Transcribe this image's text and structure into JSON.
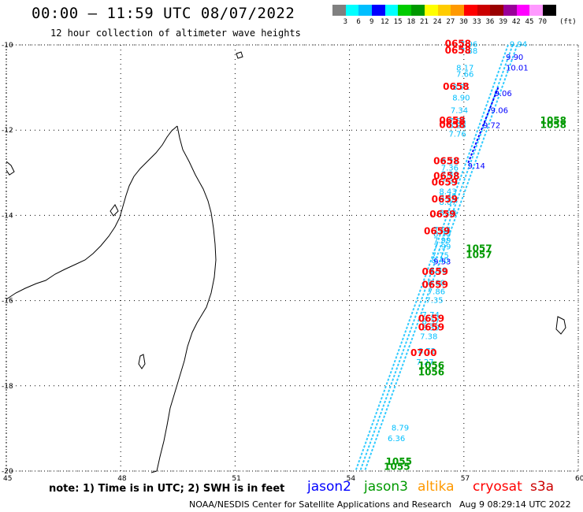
{
  "header": {
    "title": "00:00 – 11:59 UTC 08/07/2022",
    "subtitle": "12 hour collection of altimeter wave heights"
  },
  "legend": {
    "colors": [
      "#808080",
      "#00ffff",
      "#00bfff",
      "#0000ff",
      "#00ffff",
      "#00cc00",
      "#009900",
      "#ffff00",
      "#ffcc00",
      "#ff9900",
      "#ff0000",
      "#cc0000",
      "#990000",
      "#990099",
      "#ff00ff",
      "#ff99ff",
      "#000000"
    ],
    "labels": [
      "3",
      "6",
      "9",
      "12",
      "15",
      "18",
      "21",
      "24",
      "27",
      "30",
      "33",
      "36",
      "39",
      "42",
      "45",
      "70"
    ],
    "unit": "(ft)"
  },
  "map": {
    "lat_labels": [
      "-10",
      "-12",
      "-14",
      "-16",
      "-18",
      "-20"
    ],
    "lon_labels": [
      "45",
      "48",
      "51",
      "54",
      "57",
      "60"
    ],
    "swh_labels": [
      {
        "text": "7.96",
        "lon": 56.9,
        "lat": -10.05,
        "color": "#00bfff"
      },
      {
        "text": "7.88",
        "lon": 56.9,
        "lat": -10.2,
        "color": "#00bfff"
      },
      {
        "text": "8.17",
        "lon": 56.8,
        "lat": -10.6,
        "color": "#00bfff"
      },
      {
        "text": "7.66",
        "lon": 56.8,
        "lat": -10.75,
        "color": "#00bfff"
      },
      {
        "text": "8.71",
        "lon": 56.7,
        "lat": -11.05,
        "color": "#00bfff"
      },
      {
        "text": "8.90",
        "lon": 56.7,
        "lat": -11.3,
        "color": "#00bfff"
      },
      {
        "text": "7.34",
        "lon": 56.65,
        "lat": -11.6,
        "color": "#00bfff"
      },
      {
        "text": "7.55",
        "lon": 56.6,
        "lat": -11.85,
        "color": "#00bfff"
      },
      {
        "text": "8.28",
        "lon": 56.6,
        "lat": -11.95,
        "color": "#00bfff"
      },
      {
        "text": "7.76",
        "lon": 56.6,
        "lat": -12.15,
        "color": "#00bfff"
      },
      {
        "text": "8.21",
        "lon": 56.4,
        "lat": -12.8,
        "color": "#00bfff"
      },
      {
        "text": "7.36",
        "lon": 56.4,
        "lat": -12.95,
        "color": "#00bfff"
      },
      {
        "text": "7.36",
        "lon": 56.4,
        "lat": -13.1,
        "color": "#00bfff"
      },
      {
        "text": "7.32",
        "lon": 56.4,
        "lat": -13.25,
        "color": "#00bfff"
      },
      {
        "text": "8.43",
        "lon": 56.35,
        "lat": -13.5,
        "color": "#00bfff"
      },
      {
        "text": "8.40",
        "lon": 56.35,
        "lat": -13.62,
        "color": "#00bfff"
      },
      {
        "text": "8.07",
        "lon": 56.35,
        "lat": -13.75,
        "color": "#00bfff"
      },
      {
        "text": "8.03",
        "lon": 56.35,
        "lat": -14.0,
        "color": "#00bfff"
      },
      {
        "text": "7.94",
        "lon": 56.2,
        "lat": -14.4,
        "color": "#00bfff"
      },
      {
        "text": "8.70",
        "lon": 56.2,
        "lat": -14.5,
        "color": "#00bfff"
      },
      {
        "text": "7.99",
        "lon": 56.2,
        "lat": -14.65,
        "color": "#00bfff"
      },
      {
        "text": "7.99",
        "lon": 56.2,
        "lat": -14.8,
        "color": "#00bfff"
      },
      {
        "text": "7.75",
        "lon": 56.15,
        "lat": -15.0,
        "color": "#00bfff"
      },
      {
        "text": "8.40",
        "lon": 56.15,
        "lat": -15.12,
        "color": "#00bfff"
      },
      {
        "text": "8.38",
        "lon": 56.1,
        "lat": -15.35,
        "color": "#00bfff"
      },
      {
        "text": "8.00",
        "lon": 56.05,
        "lat": -15.65,
        "color": "#00bfff"
      },
      {
        "text": "7.86",
        "lon": 56.05,
        "lat": -15.85,
        "color": "#00bfff"
      },
      {
        "text": "7.35",
        "lon": 56.0,
        "lat": -16.05,
        "color": "#00bfff"
      },
      {
        "text": "7.74",
        "lon": 55.9,
        "lat": -16.4,
        "color": "#00bfff"
      },
      {
        "text": "8.37",
        "lon": 55.9,
        "lat": -16.55,
        "color": "#00bfff"
      },
      {
        "text": "6.39",
        "lon": 55.9,
        "lat": -16.7,
        "color": "#00bfff"
      },
      {
        "text": "7.38",
        "lon": 55.85,
        "lat": -16.9,
        "color": "#00bfff"
      },
      {
        "text": "8.72",
        "lon": 55.8,
        "lat": -17.25,
        "color": "#00bfff"
      },
      {
        "text": "7.27",
        "lon": 55.75,
        "lat": -17.5,
        "color": "#00bfff"
      },
      {
        "text": "8.79",
        "lon": 55.1,
        "lat": -19.05,
        "color": "#00bfff"
      },
      {
        "text": "6.36",
        "lon": 55.0,
        "lat": -19.3,
        "color": "#00bfff"
      },
      {
        "text": "9.94",
        "lon": 58.2,
        "lat": -10.05,
        "color": "#00bfff"
      },
      {
        "text": "9.90",
        "lon": 58.1,
        "lat": -10.35,
        "color": "#0000ff"
      },
      {
        "text": "10.01",
        "lon": 58.1,
        "lat": -10.6,
        "color": "#0000ff"
      },
      {
        "text": "9.06",
        "lon": 57.8,
        "lat": -11.2,
        "color": "#0000ff"
      },
      {
        "text": "9.06",
        "lon": 57.7,
        "lat": -11.6,
        "color": "#0000ff"
      },
      {
        "text": "9.72",
        "lon": 57.5,
        "lat": -11.95,
        "color": "#0000ff"
      },
      {
        "text": "9.14",
        "lon": 57.1,
        "lat": -12.9,
        "color": "#0000ff"
      },
      {
        "text": "9.53",
        "lon": 56.2,
        "lat": -15.15,
        "color": "#0000ff"
      }
    ],
    "time_labels": [
      {
        "text": "0658",
        "lon": 56.5,
        "lat": -10.05,
        "color": "#ff0000"
      },
      {
        "text": "0658",
        "lon": 56.5,
        "lat": -10.2,
        "color": "#ff0000"
      },
      {
        "text": "0658",
        "lon": 56.45,
        "lat": -11.05,
        "color": "#ff0000"
      },
      {
        "text": "0658",
        "lon": 56.35,
        "lat": -11.85,
        "color": "#ff0000"
      },
      {
        "text": "0658",
        "lon": 56.35,
        "lat": -11.95,
        "color": "#ff0000"
      },
      {
        "text": "0658",
        "lon": 56.2,
        "lat": -12.8,
        "color": "#ff0000"
      },
      {
        "text": "0658",
        "lon": 56.2,
        "lat": -13.15,
        "color": "#ff0000"
      },
      {
        "text": "0659",
        "lon": 56.15,
        "lat": -13.3,
        "color": "#ff0000"
      },
      {
        "text": "0659",
        "lon": 56.15,
        "lat": -13.7,
        "color": "#ff0000"
      },
      {
        "text": "0659",
        "lon": 56.1,
        "lat": -14.05,
        "color": "#ff0000"
      },
      {
        "text": "0659",
        "lon": 55.95,
        "lat": -14.45,
        "color": "#ff0000"
      },
      {
        "text": "0659",
        "lon": 55.9,
        "lat": -15.4,
        "color": "#ff0000"
      },
      {
        "text": "0659",
        "lon": 55.9,
        "lat": -15.7,
        "color": "#ff0000"
      },
      {
        "text": "0659",
        "lon": 55.8,
        "lat": -16.5,
        "color": "#ff0000"
      },
      {
        "text": "0659",
        "lon": 55.8,
        "lat": -16.7,
        "color": "#ff0000"
      },
      {
        "text": "0700",
        "lon": 55.6,
        "lat": -17.3,
        "color": "#ff0000"
      },
      {
        "text": "1058",
        "lon": 59.0,
        "lat": -11.85,
        "color": "#009900"
      },
      {
        "text": "1058",
        "lon": 59.0,
        "lat": -11.95,
        "color": "#009900"
      },
      {
        "text": "1057",
        "lon": 57.05,
        "lat": -14.85,
        "color": "#009900"
      },
      {
        "text": "1057",
        "lon": 57.05,
        "lat": -15.0,
        "color": "#009900"
      },
      {
        "text": "1056",
        "lon": 55.8,
        "lat": -17.6,
        "color": "#009900"
      },
      {
        "text": "1056",
        "lon": 55.8,
        "lat": -17.75,
        "color": "#009900"
      },
      {
        "text": "1055",
        "lon": 54.95,
        "lat": -19.85,
        "color": "#009900"
      },
      {
        "text": "1055",
        "lon": 54.9,
        "lat": -19.97,
        "color": "#009900"
      }
    ]
  },
  "footer": {
    "note": "note: 1) Time is in UTC; 2) SWH is in feet",
    "satellites": [
      {
        "name": "jason2",
        "color": "#0000ff"
      },
      {
        "name": "jason3",
        "color": "#009900"
      },
      {
        "name": "altika",
        "color": "#ff9900"
      },
      {
        "name": "cryosat",
        "color": "#ff0000"
      },
      {
        "name": "s3a",
        "color": "#cc0000"
      }
    ],
    "credit": "NOAA/NESDIS Center for Satellite Applications and Research",
    "timestamp": "Aug  9 08:29:14 UTC 2022"
  }
}
